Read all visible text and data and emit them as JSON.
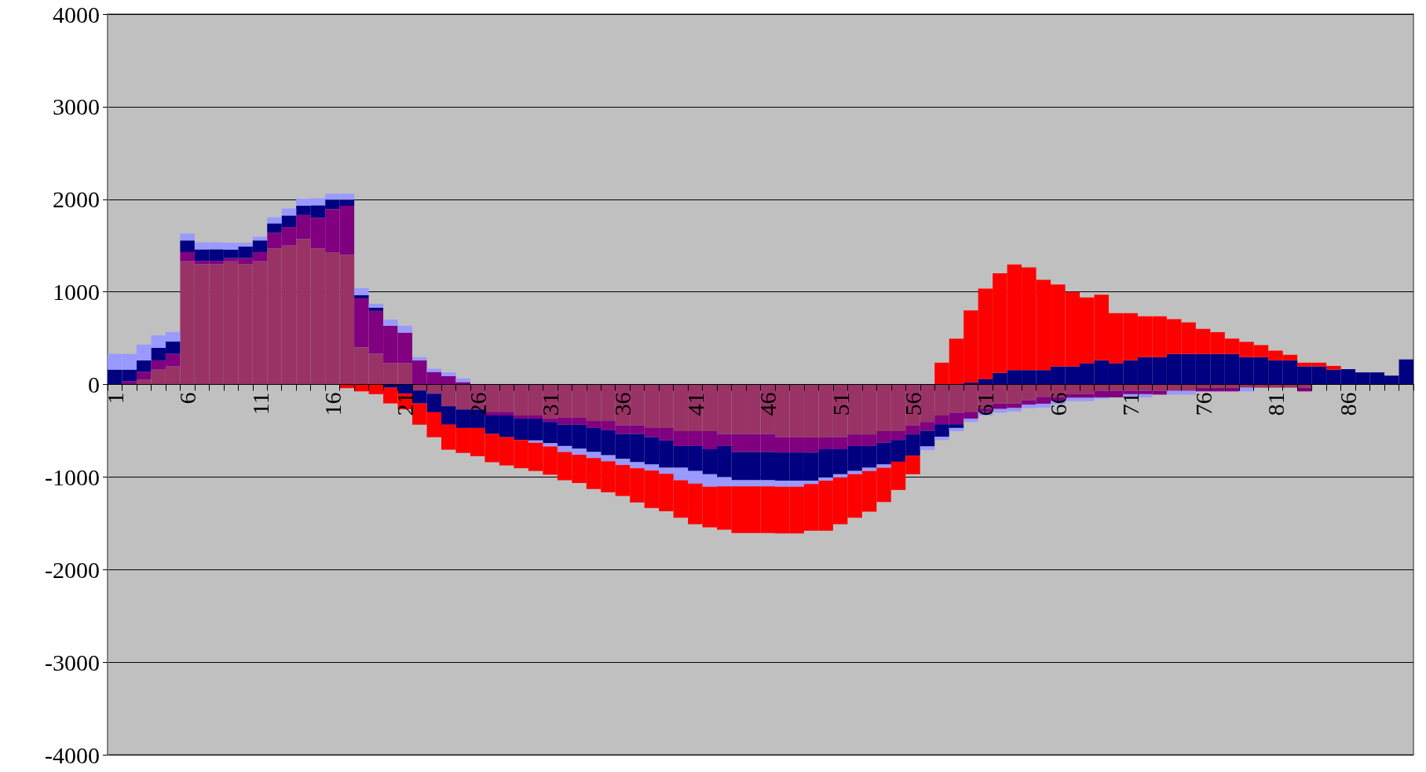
{
  "chart_data": {
    "type": "bar",
    "stacked": true,
    "grid": "y",
    "categories": [
      "1",
      null,
      null,
      null,
      null,
      "6",
      null,
      null,
      null,
      null,
      "11",
      null,
      null,
      null,
      null,
      "16",
      null,
      null,
      null,
      null,
      "21",
      null,
      null,
      null,
      null,
      "26",
      null,
      null,
      null,
      null,
      "31",
      null,
      null,
      null,
      null,
      "36",
      null,
      null,
      null,
      null,
      "41",
      null,
      null,
      null,
      null,
      "46",
      null,
      null,
      null,
      null,
      "51",
      null,
      null,
      null,
      null,
      "56",
      null,
      null,
      null,
      null,
      "61",
      null,
      null,
      null,
      null,
      "66",
      null,
      null,
      null,
      null,
      "71",
      null,
      null,
      null,
      null,
      "76",
      null,
      null,
      null,
      null,
      "81",
      null,
      null,
      null,
      null,
      "86",
      null,
      null,
      null,
      null
    ],
    "ylim": [
      -4000,
      4000
    ],
    "yticks": [
      -4000,
      -3000,
      -2000,
      -1000,
      0,
      1000,
      2000,
      3000,
      4000
    ],
    "series": [
      {
        "color": "#993366",
        "values": [
          0,
          0,
          55,
          160,
          195,
          1330,
          1300,
          1300,
          1330,
          1300,
          1330,
          1470,
          1500,
          1570,
          1470,
          1430,
          1400,
          400,
          330,
          230,
          230,
          -65,
          -100,
          -235,
          -270,
          -270,
          -295,
          -295,
          -335,
          -335,
          -370,
          -360,
          -360,
          -395,
          -395,
          -440,
          -440,
          -470,
          -470,
          -505,
          -505,
          -505,
          -535,
          -535,
          -535,
          -535,
          -570,
          -570,
          -570,
          -570,
          -570,
          -540,
          -540,
          -505,
          -505,
          -440,
          -405,
          -335,
          -305,
          -295,
          -260,
          -205,
          -205,
          -170,
          -140,
          -140,
          -105,
          -105,
          -70,
          -70,
          -70,
          -70,
          -70,
          -70,
          -70,
          -35,
          -35,
          -35,
          -35,
          -35,
          -35,
          -35,
          -35,
          0,
          0,
          0,
          0,
          0,
          0,
          0
        ]
      },
      {
        "color": "#800080",
        "values": [
          0,
          35,
          80,
          100,
          135,
          100,
          35,
          35,
          35,
          65,
          100,
          170,
          200,
          260,
          330,
          465,
          530,
          530,
          465,
          405,
          330,
          260,
          135,
          90,
          25,
          0,
          -40,
          -40,
          -35,
          -35,
          -35,
          -75,
          -75,
          -75,
          -100,
          -95,
          -95,
          -100,
          -135,
          -160,
          -160,
          -195,
          -130,
          -195,
          -195,
          -195,
          -165,
          -165,
          -165,
          -130,
          -130,
          -125,
          -125,
          -125,
          -95,
          -100,
          -95,
          -95,
          -125,
          -75,
          -40,
          -60,
          -50,
          -50,
          -70,
          -40,
          -40,
          -40,
          -70,
          -70,
          -35,
          -35,
          -40,
          0,
          0,
          -40,
          -40,
          -40,
          0,
          0,
          0,
          0,
          -40,
          0,
          0,
          0,
          0,
          0,
          0,
          0
        ]
      },
      {
        "color": "#000080",
        "values": [
          160,
          125,
          125,
          135,
          135,
          125,
          125,
          125,
          90,
          125,
          125,
          100,
          125,
          100,
          135,
          100,
          65,
          35,
          35,
          -35,
          -100,
          -140,
          -200,
          -200,
          -200,
          -200,
          -200,
          -235,
          -230,
          -235,
          -230,
          -230,
          -260,
          -260,
          -270,
          -270,
          -305,
          -295,
          -295,
          -235,
          -270,
          -270,
          -335,
          -305,
          -305,
          -305,
          -305,
          -305,
          -305,
          -305,
          -270,
          -270,
          -235,
          -235,
          -235,
          -230,
          -170,
          -135,
          -40,
          20,
          60,
          125,
          155,
          155,
          155,
          195,
          195,
          230,
          260,
          230,
          260,
          295,
          295,
          330,
          330,
          330,
          330,
          330,
          295,
          295,
          260,
          260,
          195,
          195,
          160,
          165,
          130,
          130,
          95,
          270
        ]
      },
      {
        "color": "#9999ff",
        "values": [
          170,
          170,
          170,
          135,
          100,
          75,
          75,
          75,
          75,
          40,
          40,
          65,
          75,
          75,
          75,
          65,
          65,
          75,
          40,
          65,
          75,
          35,
          35,
          40,
          40,
          0,
          0,
          0,
          0,
          -25,
          -35,
          -65,
          -65,
          -65,
          -65,
          -65,
          -65,
          -65,
          -65,
          -135,
          -135,
          -135,
          -100,
          -65,
          -65,
          -65,
          -65,
          -65,
          -35,
          -35,
          -35,
          -35,
          -35,
          -35,
          0,
          0,
          -40,
          -35,
          -35,
          -35,
          -35,
          -40,
          -35,
          -35,
          -40,
          -35,
          -35,
          -35,
          -15,
          0,
          -35,
          -35,
          0,
          -40,
          -40,
          0,
          0,
          0,
          -40,
          0,
          0,
          0,
          0,
          0,
          0,
          0,
          0,
          0,
          0,
          0
        ]
      },
      {
        "color": "#ff0000",
        "values": [
          0,
          0,
          0,
          0,
          0,
          0,
          0,
          0,
          0,
          0,
          0,
          0,
          0,
          0,
          0,
          0,
          -40,
          -75,
          -105,
          -170,
          -170,
          -230,
          -270,
          -270,
          -270,
          -305,
          -305,
          -305,
          -305,
          -305,
          -305,
          -305,
          -305,
          -335,
          -335,
          -335,
          -370,
          -405,
          -405,
          -405,
          -440,
          -440,
          -470,
          -505,
          -505,
          -505,
          -505,
          -505,
          -505,
          -540,
          -505,
          -470,
          -440,
          -370,
          -305,
          -200,
          0,
          235,
          495,
          780,
          975,
          1075,
          1140,
          1110,
          975,
          885,
          805,
          710,
          710,
          540,
          510,
          440,
          440,
          375,
          340,
          270,
          235,
          165,
          165,
          130,
          105,
          60,
          40,
          40,
          40,
          0,
          0,
          0,
          0,
          0
        ]
      }
    ]
  }
}
